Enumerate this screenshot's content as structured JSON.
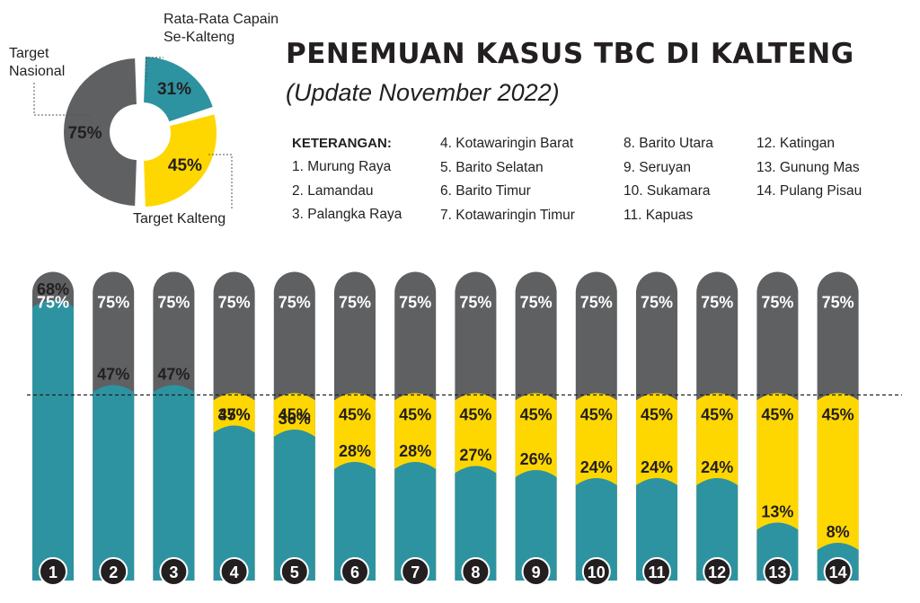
{
  "title": "PENEMUAN KASUS TBC DI KALTENG",
  "subtitle": "(Update November 2022)",
  "legend": {
    "heading": "KETERANGAN:",
    "columns": [
      [
        "1. Murung Raya",
        "2. Lamandau",
        "3. Palangka Raya"
      ],
      [
        "4. Kotawaringin Barat",
        "5. Barito Selatan",
        "6. Barito Timur",
        "7. Kotawaringin Timur"
      ],
      [
        "8. Barito Utara",
        "9. Seruyan",
        "10. Sukamara",
        "11. Kapuas"
      ],
      [
        "12. Katingan",
        "13. Gunung Mas",
        "14. Pulang Pisau"
      ]
    ]
  },
  "colors": {
    "national": "#5f6062",
    "kalteng": "#ffd700",
    "achievement": "#2e93a0",
    "text": "#231f20"
  },
  "chart_data": [
    {
      "type": "pie",
      "subtype": "donut",
      "slices": [
        {
          "label": "Target Nasional",
          "value": 75,
          "display": "75%"
        },
        {
          "label": "Rata-Rata Capain Se-Kalteng",
          "value": 31,
          "display": "31%"
        },
        {
          "label": "Target Kalteng",
          "value": 45,
          "display": "45%"
        }
      ],
      "label_lines": {
        "average": [
          "Rata-Rata Capain",
          "Se-Kalteng"
        ],
        "national": [
          "Target",
          "Nasional"
        ],
        "kalteng": [
          "Target Kalteng"
        ]
      }
    },
    {
      "type": "bar",
      "categories": [
        "1",
        "2",
        "3",
        "4",
        "5",
        "6",
        "7",
        "8",
        "9",
        "10",
        "11",
        "12",
        "13",
        "14"
      ],
      "ylim": [
        0,
        100
      ],
      "national_target": 75,
      "national_target_label": "75%",
      "kalteng_target": 45,
      "kalteng_target_label": "45%",
      "series": [
        {
          "values": [
            68,
            47,
            47,
            37,
            36,
            28,
            28,
            27,
            26,
            24,
            24,
            24,
            13,
            8
          ]
        }
      ],
      "value_labels": [
        "68%",
        "47%",
        "47%",
        "37%",
        "36%",
        "28%",
        "28%",
        "27%",
        "26%",
        "24%",
        "24%",
        "24%",
        "13%",
        "8%"
      ]
    }
  ]
}
